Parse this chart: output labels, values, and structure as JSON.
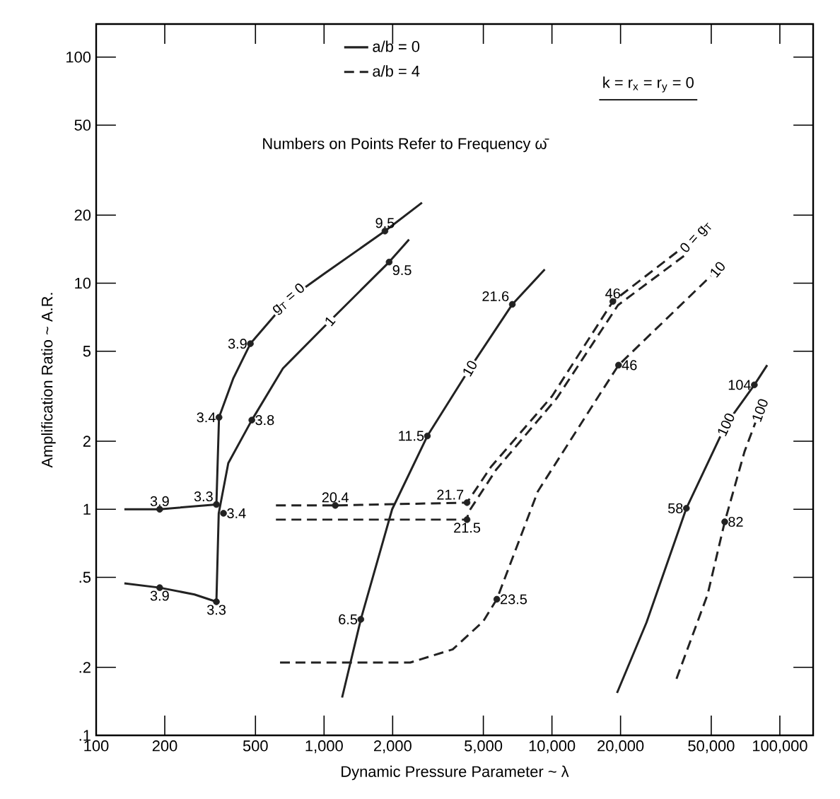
{
  "chart_data": {
    "type": "line",
    "xlabel": "Dynamic Pressure Parameter ~ λ",
    "ylabel": "Amplification Ratio ~ A.R.",
    "log": "xy",
    "xlim": [
      100,
      140000
    ],
    "ylim": [
      0.1,
      140
    ],
    "legend": "top",
    "marker": "none",
    "xticks": [
      100,
      200,
      500,
      {
        "value": 1000,
        "label": "1,000"
      },
      {
        "value": 2000,
        "label": "2,000"
      },
      {
        "value": 5000,
        "label": "5,000"
      },
      {
        "value": 10000,
        "label": "10,000"
      },
      {
        "value": 20000,
        "label": "20,000"
      },
      {
        "value": 50000,
        "label": "50,000"
      },
      {
        "value": 100000,
        "label": "100,000"
      }
    ],
    "yticks": [
      {
        "value": 0.1,
        "label": ".1"
      },
      {
        "value": 0.2,
        "label": ".2"
      },
      {
        "value": 0.5,
        "label": ".5"
      },
      1,
      2,
      5,
      10,
      20,
      50,
      100
    ],
    "series": [
      {
        "name": "a/b = 0",
        "color": "#222222",
        "line_style": "solid",
        "x": [
          133,
          190,
          337,
          346,
          400,
          475,
          700,
          1000,
          1850,
          2690
        ],
        "values": [
          1,
          1,
          1.05,
          2.55,
          3.8,
          5.4,
          8.5,
          11,
          17,
          22.7
        ]
      },
      {
        "color": "#222222",
        "line_style": "solid",
        "x": [
          133,
          190,
          270,
          337,
          345,
          380,
          482,
          660,
          1060,
          1930,
          2360
        ],
        "values": [
          0.47,
          0.45,
          0.42,
          0.39,
          0.96,
          1.6,
          2.48,
          4.2,
          6.8,
          12.4,
          15.6
        ]
      },
      {
        "color": "#222222",
        "line_style": "solid",
        "x": [
          1200,
          1450,
          1990,
          2840,
          4360,
          6700,
          9300
        ],
        "values": [
          0.147,
          0.326,
          1,
          2.11,
          4.2,
          8.06,
          11.5
        ]
      },
      {
        "color": "#222222",
        "line_style": "solid",
        "x": [
          19300,
          26000,
          38900,
          58000,
          77300,
          88000
        ],
        "values": [
          0.154,
          0.316,
          1.01,
          2.37,
          3.55,
          4.34
        ]
      },
      {
        "name": "a/b = 4",
        "color": "#222222",
        "line_style": "dashed",
        "x": [
          615,
          1120,
          4240,
          5400,
          10000,
          18500,
          43000
        ],
        "values": [
          1.04,
          1.04,
          1.07,
          1.54,
          3.16,
          8.3,
          16
        ]
      },
      {
        "color": "#222222",
        "line_style": "dashed",
        "x": [
          615,
          4240,
          4300,
          5700,
          10500,
          19500,
          45000
        ],
        "values": [
          0.9,
          0.9,
          0.97,
          1.5,
          3.1,
          8,
          15
        ]
      },
      {
        "color": "#222222",
        "line_style": "dashed",
        "x": [
          641,
          2390,
          3670,
          5000,
          5730,
          8670,
          16000,
          19600,
          53300
        ],
        "values": [
          0.21,
          0.21,
          0.24,
          0.32,
          0.4,
          1.2,
          3.16,
          4.34,
          11.5
        ]
      },
      {
        "color": "#222222",
        "line_style": "dashed",
        "x": [
          35200,
          48200,
          57300,
          70000,
          81800
        ],
        "values": [
          0.178,
          0.42,
          0.88,
          1.8,
          2.74
        ]
      },
      {
        "type": "scatter",
        "marker": "circle",
        "color": "#222222",
        "x": [
          190,
          337,
          346,
          475,
          1850,
          190,
          337,
          362,
          482,
          1930,
          1120,
          1450,
          2840,
          6700,
          4240,
          4240,
          5730,
          18500,
          19600,
          38900,
          77300,
          57300
        ],
        "values": [
          1,
          1.05,
          2.55,
          5.4,
          17,
          0.45,
          0.39,
          0.96,
          2.48,
          12.4,
          1.04,
          0.326,
          2.11,
          8.06,
          1.07,
          0.9,
          0.4,
          8.3,
          4.34,
          1.01,
          3.55,
          0.88
        ]
      }
    ],
    "annotations": [
      "Numbers on Points Refer to Frequency ω̄",
      "k = r$_{x}$ = r$_{y}$ = 0",
      {
        "text": "3.9",
        "x": 190,
        "y": 1
      },
      {
        "text": "3.3",
        "x": 337,
        "y": 1.05
      },
      {
        "text": "3.4",
        "x": 346,
        "y": 2.55
      },
      {
        "text": "3.9",
        "x": 475,
        "y": 5.4
      },
      {
        "text": "9.5",
        "x": 1850,
        "y": 17
      },
      {
        "text": "3.9",
        "x": 190,
        "y": 0.45
      },
      {
        "text": "3.3",
        "x": 337,
        "y": 0.39
      },
      {
        "text": "3.4",
        "x": 362,
        "y": 0.96
      },
      {
        "text": "3.8",
        "x": 482,
        "y": 2.48
      },
      {
        "text": "9.5",
        "x": 1930,
        "y": 12.4
      },
      {
        "text": "20.4",
        "x": 1120,
        "y": 1.04
      },
      {
        "text": "6.5",
        "x": 1450,
        "y": 0.326
      },
      {
        "text": "11.5",
        "x": 2840,
        "y": 2.11
      },
      {
        "text": "21.6",
        "x": 6700,
        "y": 8.06
      },
      {
        "text": "21.7",
        "x": 4240,
        "y": 1.07
      },
      {
        "text": "21.5",
        "x": 4240,
        "y": 0.9
      },
      {
        "text": "23.5",
        "x": 5730,
        "y": 0.4
      },
      {
        "text": "46",
        "x": 18500,
        "y": 8.3
      },
      {
        "text": "46",
        "x": 19600,
        "y": 4.34
      },
      {
        "text": "58",
        "x": 38900,
        "y": 1.01
      },
      {
        "text": "104",
        "x": 77300,
        "y": 3.55
      },
      {
        "text": "82",
        "x": 57300,
        "y": 0.88
      },
      {
        "text": "g$_{T}$ = 0",
        "x": 700,
        "y": 8.5
      },
      {
        "text": "1",
        "x": 1060,
        "y": 6.8
      },
      {
        "text": "10",
        "x": 4360,
        "y": 4.2
      },
      {
        "text": "100",
        "x": 58000,
        "y": 2.37
      },
      {
        "text": "0 = g$_{T}$",
        "x": 43000,
        "y": 16
      },
      {
        "text": "10",
        "x": 53300,
        "y": 11.5
      },
      {
        "text": "100",
        "x": 81800,
        "y": 2.74
      }
    ]
  }
}
